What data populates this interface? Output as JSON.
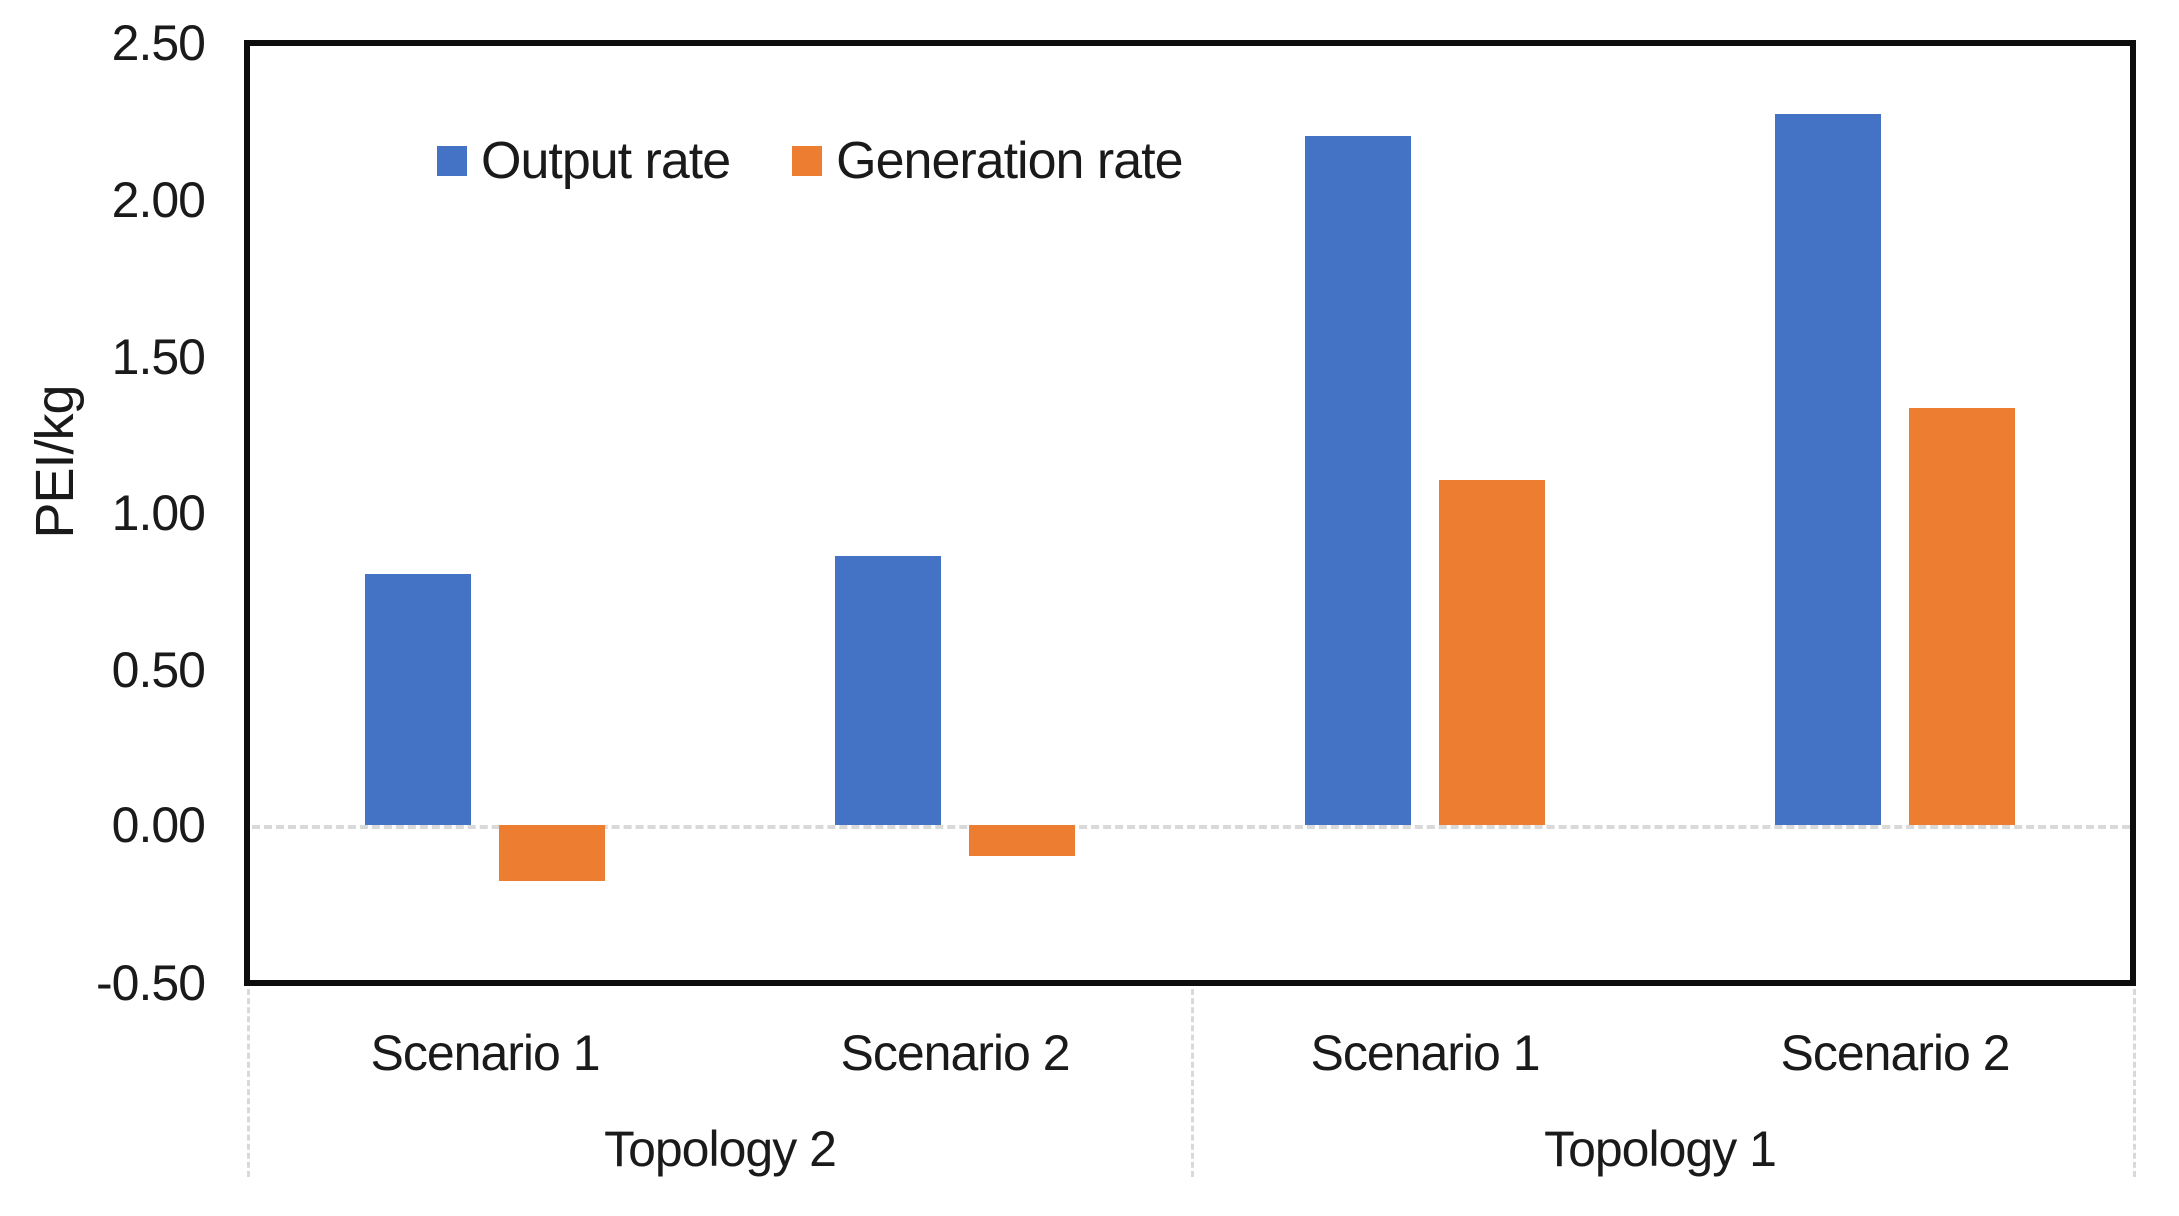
{
  "chart_data": {
    "type": "bar",
    "title": "",
    "xlabel": "",
    "ylabel": "PEI/kg",
    "ylim": [
      -0.5,
      2.5
    ],
    "ytick_step": 0.5,
    "yticks": [
      "2.50",
      "2.00",
      "1.50",
      "1.00",
      "0.50",
      "0.00",
      "-0.50"
    ],
    "grid": "zero-baseline-dashed-only",
    "legend_position": "top-inside",
    "group_labels": [
      "Topology 2",
      "Topology 1"
    ],
    "categories": [
      "Scenario 1",
      "Scenario 2",
      "Scenario 1",
      "Scenario 2"
    ],
    "series": [
      {
        "name": "Output rate",
        "color": "#4472C4",
        "values": [
          0.8,
          0.86,
          2.2,
          2.27
        ]
      },
      {
        "name": "Generation rate",
        "color": "#ED7D31",
        "values": [
          -0.18,
          -0.1,
          1.1,
          1.33
        ]
      }
    ]
  },
  "colors": {
    "plot_border": "#0d0d0d",
    "text": "#1a1a1a",
    "zero_gridline": "#d9d9d9",
    "separator": "#d9d9d9",
    "background": "#ffffff"
  }
}
